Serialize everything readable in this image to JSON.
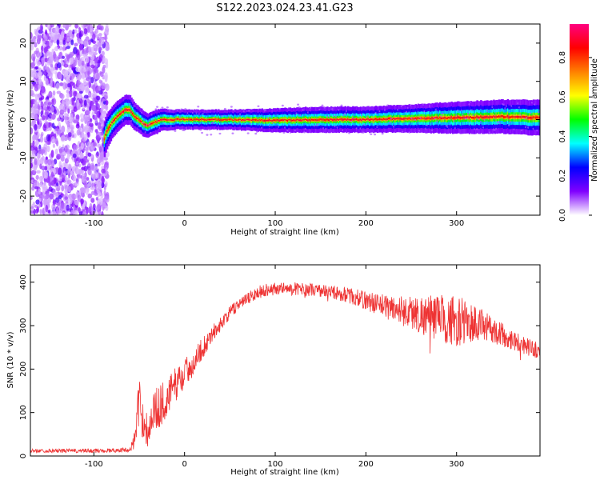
{
  "figure": {
    "title": "S122.2023.024.23.41.G23"
  },
  "chart_data": [
    {
      "type": "heatmap",
      "panel": "spectrogram",
      "xlabel": "Height of straight line (km)",
      "ylabel": "Frequency (Hz)",
      "xlim": [
        -170,
        392
      ],
      "ylim": [
        -25,
        25
      ],
      "xticks": [
        -100,
        0,
        100,
        200,
        300
      ],
      "yticks": [
        -20,
        -10,
        0,
        10,
        20
      ],
      "colorbar": {
        "label": "Normalized spectral amplitude",
        "range": [
          0,
          0.97
        ],
        "ticks": [
          0.0,
          0.2,
          0.4,
          0.6,
          0.8
        ],
        "tick_labels": [
          "0.0",
          "0.2",
          "0.4",
          "0.6",
          "0.8"
        ],
        "colormap": [
          "#ffffff",
          "#8000ff",
          "#0000ff",
          "#00ffff",
          "#00ff00",
          "#ffff00",
          "#ff8000",
          "#ff0000",
          "#ff0080"
        ]
      },
      "noise_region": {
        "x": [
          -170,
          -85
        ],
        "amplitude": 0.2
      },
      "ridge": {
        "x": [
          -88,
          -85,
          -80,
          -75,
          -70,
          -65,
          -60,
          -55,
          -50,
          -45,
          -40,
          -35,
          -30,
          -25,
          -20,
          -10,
          0,
          50,
          100,
          150,
          200,
          250,
          300,
          350,
          392
        ],
        "freq": [
          -5,
          -3,
          -1,
          0.5,
          1.5,
          2.5,
          2.5,
          1,
          0,
          -1,
          -1.5,
          -1,
          -0.5,
          0,
          0,
          0,
          0,
          0,
          -0.2,
          0,
          0,
          0.3,
          0.5,
          0.8,
          0.5
        ],
        "width": [
          1.8,
          1.8,
          1.6,
          1.6,
          1.5,
          1.5,
          1.5,
          1.4,
          1.3,
          1.3,
          1.2,
          1.2,
          1.2,
          1.1,
          1.1,
          1.0,
          1.0,
          1.0,
          1.2,
          1.3,
          1.3,
          1.4,
          1.6,
          1.7,
          1.8
        ]
      }
    },
    {
      "type": "line",
      "panel": "snr",
      "xlabel": "Height of straight line (km)",
      "ylabel": "SNR (10 * v/v)",
      "xlim": [
        -170,
        392
      ],
      "ylim": [
        0,
        440
      ],
      "xticks": [
        -100,
        0,
        100,
        200,
        300
      ],
      "yticks": [
        0,
        100,
        200,
        300,
        400
      ],
      "series": [
        {
          "color": "#ee3333",
          "x": [
            -170,
            -100,
            -60,
            -55,
            -50,
            -45,
            -40,
            -35,
            -30,
            -25,
            -20,
            -10,
            0,
            10,
            20,
            30,
            40,
            50,
            60,
            70,
            80,
            90,
            100,
            120,
            140,
            160,
            180,
            200,
            220,
            240,
            260,
            280,
            300,
            320,
            340,
            360,
            380,
            392
          ],
          "y": [
            12,
            12,
            14,
            40,
            120,
            80,
            55,
            100,
            110,
            120,
            130,
            165,
            190,
            215,
            250,
            280,
            305,
            330,
            350,
            362,
            375,
            383,
            385,
            385,
            383,
            378,
            370,
            358,
            345,
            335,
            325,
            318,
            310,
            305,
            290,
            270,
            250,
            240
          ],
          "noise": [
            4,
            5,
            5,
            25,
            60,
            45,
            40,
            45,
            50,
            50,
            45,
            40,
            35,
            30,
            25,
            20,
            15,
            15,
            15,
            15,
            15,
            15,
            15,
            15,
            15,
            15,
            18,
            22,
            28,
            35,
            45,
            55,
            60,
            45,
            30,
            25,
            20,
            20
          ]
        }
      ]
    }
  ]
}
